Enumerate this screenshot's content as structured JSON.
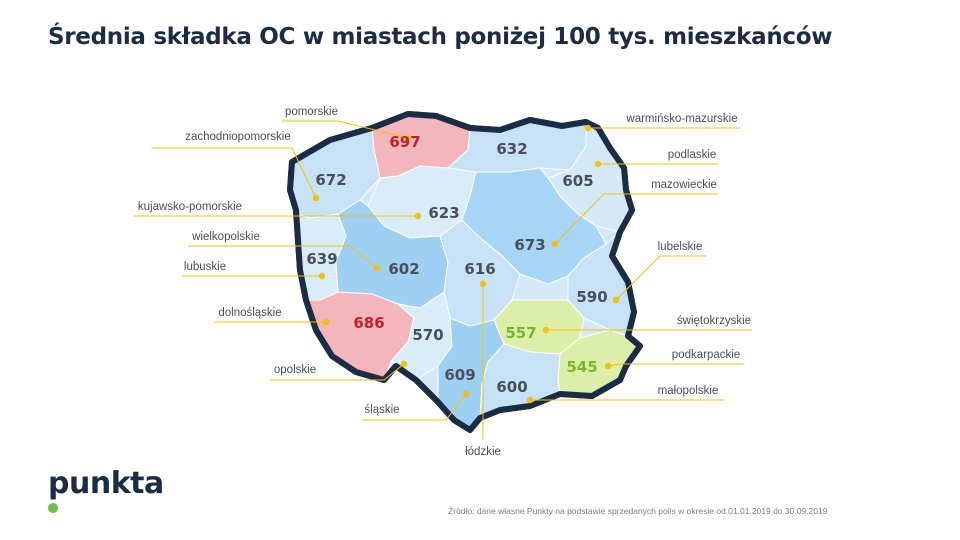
{
  "title": "Średnia składka OC w miastach poniżej 100 tys. mieszkańców",
  "colors": {
    "high": "#c0202a",
    "low": "#7cb52a",
    "normal": "#4a4f57",
    "leader": "#f2c20b",
    "outline": "#1b2d45"
  },
  "regions": [
    {
      "id": "pomorskie",
      "name": "pomorskie",
      "value": "697",
      "tier": "high"
    },
    {
      "id": "zachodniopomorskie",
      "name": "zachodniopomorskie",
      "value": "672",
      "tier": "normal"
    },
    {
      "id": "kujawsko-pomorskie",
      "name": "kujawsko-pomorskie",
      "value": "623",
      "tier": "normal"
    },
    {
      "id": "wielkopolskie",
      "name": "wielkopolskie",
      "value": "602",
      "tier": "normal"
    },
    {
      "id": "lubuskie",
      "name": "lubuskie",
      "value": "639",
      "tier": "normal"
    },
    {
      "id": "dolnoslaskie",
      "name": "dolnośląskie",
      "value": "686",
      "tier": "high"
    },
    {
      "id": "opolskie",
      "name": "opolskie",
      "value": "570",
      "tier": "normal"
    },
    {
      "id": "slaskie",
      "name": "śląskie",
      "value": "609",
      "tier": "normal"
    },
    {
      "id": "lodzkie",
      "name": "łódzkie",
      "value": "616",
      "tier": "normal"
    },
    {
      "id": "warminsko-mazurskie",
      "name": "warmińsko-mazurskie",
      "value": "632",
      "tier": "normal"
    },
    {
      "id": "podlaskie",
      "name": "podlaskie",
      "value": "605",
      "tier": "normal"
    },
    {
      "id": "mazowieckie",
      "name": "mazowieckie",
      "value": "673",
      "tier": "normal"
    },
    {
      "id": "lubelskie",
      "name": "lubelskie",
      "value": "590",
      "tier": "normal"
    },
    {
      "id": "swietokrzyskie",
      "name": "świętokrzyskie",
      "value": "557",
      "tier": "low"
    },
    {
      "id": "podkarpackie",
      "name": "podkarpackie",
      "value": "545",
      "tier": "low"
    },
    {
      "id": "malopolskie",
      "name": "małopolskie",
      "value": "600",
      "tier": "normal"
    }
  ],
  "logo": "punkta",
  "source": "Źródło: dane własne Punkty na podstawie sprzedanych polis w okresie od 01.01.2019 do 30.09.2019"
}
